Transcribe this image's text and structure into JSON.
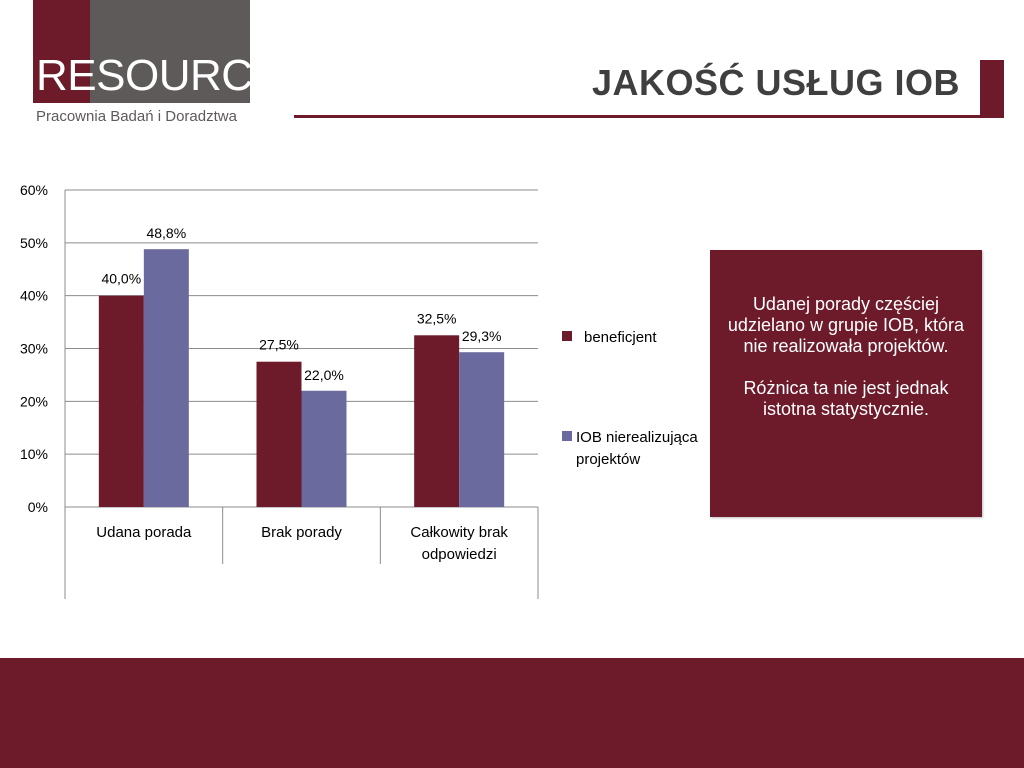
{
  "logo": {
    "wordmark": "RESOURCE",
    "subtitle": "Pracownia Badań i Doradztwa"
  },
  "title": "JAKOŚĆ USŁUG IOB",
  "callout": {
    "line1": "Udanej porady częściej udzielano w grupie IOB, która nie realizowała projektów.",
    "line2": "Różnica ta nie jest jednak istotna statystycznie."
  },
  "colors": {
    "brand": "#6d1b2a",
    "series1": "#6d1b2a",
    "series2": "#6a6a9e",
    "gray": "#5f5a5a"
  },
  "chart_data": {
    "type": "bar",
    "categories": [
      "Udana porada",
      "Brak porady",
      "Całkowity brak odpowiedzi"
    ],
    "series": [
      {
        "name": "beneficjent",
        "values": [
          40.0,
          27.5,
          32.5
        ],
        "labels": [
          "40,0%",
          "27,5%",
          "32,5%"
        ]
      },
      {
        "name": "IOB nierealizująca projektów",
        "values": [
          48.8,
          22.0,
          29.3
        ],
        "labels": [
          "48,8%",
          "22,0%",
          "29,3%"
        ]
      }
    ],
    "yticks": [
      "0%",
      "10%",
      "20%",
      "30%",
      "40%",
      "50%",
      "60%"
    ],
    "ylim": [
      0,
      60
    ],
    "grid": true,
    "legend": "right"
  }
}
